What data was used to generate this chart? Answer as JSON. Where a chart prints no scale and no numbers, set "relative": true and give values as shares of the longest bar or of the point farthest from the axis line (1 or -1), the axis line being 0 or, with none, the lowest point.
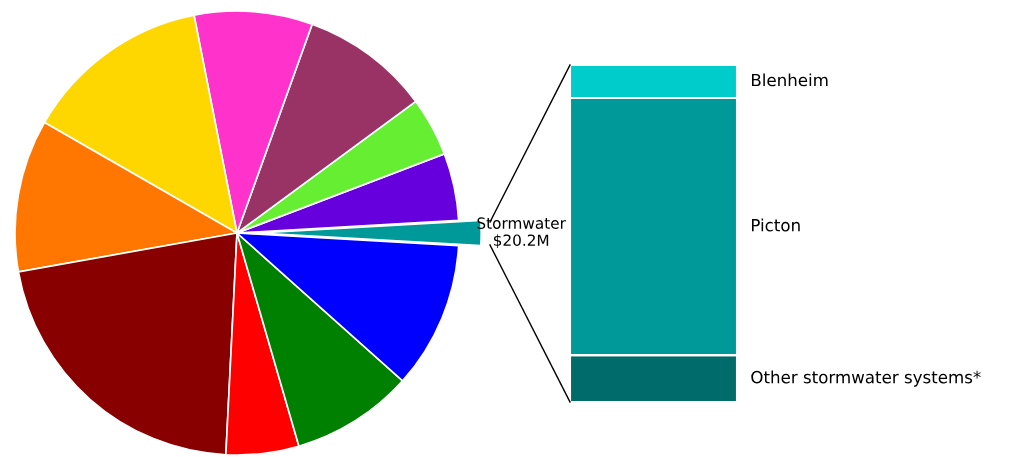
{
  "chart_data": [
    {
      "type": "pie",
      "categories": [
        "Stormwater\n$20.2M",
        null,
        null,
        null,
        null,
        null,
        null,
        null,
        null,
        null,
        null
      ],
      "values": [
        1.8,
        4.9,
        4.3,
        9.4,
        8.6,
        13.6,
        11.1,
        21.4,
        5.3,
        8.9,
        10.7
      ],
      "colors": [
        "#009999",
        "#6600dd",
        "#66ee33",
        "#993366",
        "#ff33cc",
        "#ffd700",
        "#ff7700",
        "#880000",
        "#ff0000",
        "#008000",
        "#0000ff"
      ]
    },
    {
      "type": "bar",
      "stacked": true,
      "relative": true,
      "categories": [
        null
      ],
      "series": [
        {
          "name": "Other stormwater systems*",
          "color": "#006b6b",
          "values": [
            0.139
          ]
        },
        {
          "name": "Picton",
          "color": "#009999",
          "values": [
            0.763
          ]
        },
        {
          "name": "Blenheim",
          "color": "#00cccc",
          "values": [
            0.098
          ]
        }
      ]
    }
  ]
}
